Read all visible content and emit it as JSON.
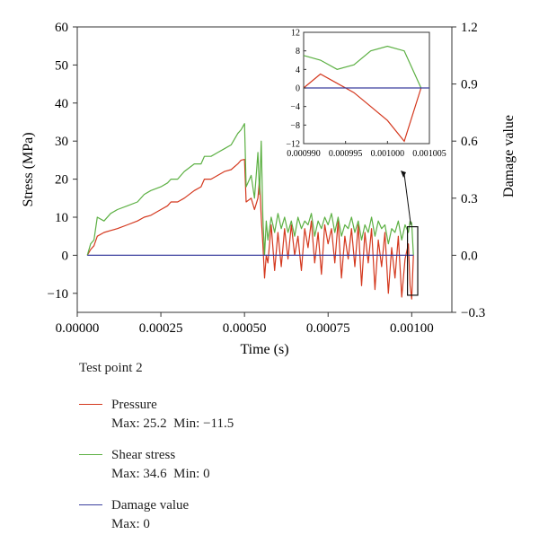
{
  "chart_data": {
    "type": "line",
    "title": "",
    "xlabel": "Time (s)",
    "ylabel": "Stress (MPa)",
    "y2label": "Damage value",
    "xlim": [
      0,
      0.00112
    ],
    "ylim": [
      -15,
      60
    ],
    "y2lim": [
      -0.3,
      1.2
    ],
    "xticks": [
      "0.00000",
      "0.00025",
      "0.00050",
      "0.00075",
      "0.00100"
    ],
    "xtick_values": [
      0,
      0.00025,
      0.0005,
      0.00075,
      0.001
    ],
    "yticks": [
      "-10",
      "0",
      "10",
      "20",
      "30",
      "40",
      "50",
      "60"
    ],
    "ytick_values": [
      -10,
      0,
      10,
      20,
      30,
      40,
      50,
      60
    ],
    "y2ticks": [
      "-0.3",
      "0.0",
      "0.3",
      "0.6",
      "0.9",
      "1.2"
    ],
    "y2tick_values": [
      -0.3,
      0,
      0.3,
      0.6,
      0.9,
      1.2
    ],
    "series": [
      {
        "name": "Pressure",
        "color": "#d4381e",
        "x": [
          3e-05,
          4e-05,
          5e-05,
          6e-05,
          8e-05,
          0.0001,
          0.00012,
          0.00015,
          0.00018,
          0.0002,
          0.00022,
          0.00025,
          0.00027,
          0.00028,
          0.0003,
          0.00032,
          0.00035,
          0.00037,
          0.00038,
          0.0004,
          0.00042,
          0.00044,
          0.00046,
          0.00048,
          0.00049,
          0.0005,
          0.000505,
          0.00052,
          0.00053,
          0.00054,
          0.000545,
          0.00055,
          0.000555,
          0.00056,
          0.000565,
          0.00057,
          0.00058,
          0.00059,
          0.0006,
          0.00061,
          0.00062,
          0.00063,
          0.00064,
          0.00065,
          0.00066,
          0.00067,
          0.00068,
          0.00069,
          0.0007,
          0.00071,
          0.00072,
          0.00073,
          0.00074,
          0.00075,
          0.00076,
          0.00077,
          0.00078,
          0.00079,
          0.0008,
          0.00081,
          0.00082,
          0.00083,
          0.00084,
          0.00085,
          0.00086,
          0.00087,
          0.00088,
          0.00089,
          0.0009,
          0.00091,
          0.00092,
          0.00093,
          0.00094,
          0.00095,
          0.00096,
          0.00097,
          0.00098,
          0.00099,
          0.000995,
          0.001,
          0.001005
        ],
        "y": [
          0,
          1.5,
          2.5,
          5,
          6,
          6.5,
          7,
          8,
          9,
          10,
          10.5,
          12,
          13,
          14,
          14,
          15,
          17,
          18,
          20,
          20,
          21,
          22,
          22.5,
          24,
          25,
          25.2,
          14,
          15,
          12,
          15,
          20,
          10,
          3,
          -6,
          0,
          -2,
          8,
          -4,
          6,
          -3,
          7,
          -1,
          8,
          0,
          5,
          -4,
          7,
          2,
          9,
          -2,
          6,
          -5,
          8,
          3,
          7,
          -2,
          9,
          -6,
          5,
          -1,
          7,
          -3,
          8,
          -8,
          6,
          -2,
          7,
          -9,
          4,
          -3,
          6,
          -10,
          2,
          -6,
          5,
          -11,
          -1,
          3,
          -8,
          -11.5,
          0
        ]
      },
      {
        "name": "Shear stress",
        "color": "#5cb043",
        "x": [
          3e-05,
          4e-05,
          5e-05,
          6e-05,
          8e-05,
          0.0001,
          0.00012,
          0.00015,
          0.00018,
          0.0002,
          0.00022,
          0.00025,
          0.00027,
          0.00028,
          0.0003,
          0.00032,
          0.00035,
          0.00037,
          0.00038,
          0.0004,
          0.00042,
          0.00044,
          0.00046,
          0.00048,
          0.00049,
          0.0005,
          0.000505,
          0.00052,
          0.00053,
          0.00054,
          0.000545,
          0.00055,
          0.000555,
          0.00056,
          0.000565,
          0.00057,
          0.00058,
          0.00059,
          0.0006,
          0.00061,
          0.00062,
          0.00063,
          0.00064,
          0.00065,
          0.00066,
          0.00067,
          0.00068,
          0.00069,
          0.0007,
          0.00071,
          0.00072,
          0.00073,
          0.00074,
          0.00075,
          0.00076,
          0.00077,
          0.00078,
          0.00079,
          0.0008,
          0.00081,
          0.00082,
          0.00083,
          0.00084,
          0.00085,
          0.00086,
          0.00087,
          0.00088,
          0.00089,
          0.0009,
          0.00091,
          0.00092,
          0.00093,
          0.00094,
          0.00095,
          0.00096,
          0.00097,
          0.00098,
          0.00099,
          0.000995,
          0.001,
          0.001005
        ],
        "y": [
          0,
          3,
          4,
          10,
          9,
          11,
          12,
          13,
          14,
          16,
          17,
          18,
          19,
          20,
          20,
          22,
          24,
          24,
          26,
          26,
          27,
          28,
          29,
          32,
          33,
          34.6,
          18,
          21,
          15,
          27,
          16,
          30,
          10,
          0,
          9,
          4,
          10,
          6,
          11,
          7,
          10,
          6,
          9,
          5,
          10,
          7,
          9,
          8,
          11,
          5,
          9,
          7,
          10,
          8,
          11,
          6,
          10,
          5,
          8,
          7,
          10,
          6,
          9,
          4,
          8,
          6,
          10,
          5,
          9,
          7,
          8,
          3,
          7,
          6,
          9,
          4,
          8,
          6,
          9,
          8.5,
          0
        ]
      },
      {
        "name": "Damage value",
        "color": "#3a3f9e",
        "axis": "y2",
        "x": [
          3e-05,
          0.001005
        ],
        "y": [
          0,
          0
        ]
      }
    ],
    "inset": {
      "xlim": [
        0.00099,
        0.001005
      ],
      "ylim": [
        -12,
        12
      ],
      "xticks": [
        "0.000990",
        "0.000995",
        "0.001000",
        "0.001005"
      ],
      "xtick_values": [
        0.00099,
        0.000995,
        0.001,
        0.001005
      ],
      "yticks": [
        "12",
        "8",
        "4",
        "0",
        "−4",
        "−8",
        "−12"
      ],
      "ytick_values": [
        12,
        8,
        4,
        0,
        -4,
        -8,
        -12
      ],
      "series": [
        {
          "name": "Pressure",
          "color": "#d4381e",
          "x": [
            0.00099,
            0.000992,
            0.000994,
            0.000996,
            0.000998,
            0.001,
            0.001002,
            0.001004
          ],
          "y": [
            0,
            3,
            1,
            -1,
            -4,
            -7,
            -11.5,
            0
          ]
        },
        {
          "name": "Shear stress",
          "color": "#5cb043",
          "x": [
            0.00099,
            0.000992,
            0.000994,
            0.000996,
            0.000998,
            0.001,
            0.001002,
            0.001004
          ],
          "y": [
            7,
            6,
            4,
            5,
            8,
            9,
            8,
            0
          ]
        },
        {
          "name": "Damage value",
          "color": "#3a3f9e",
          "x": [
            0.00099,
            0.001005
          ],
          "y": [
            0,
            0
          ]
        }
      ]
    }
  },
  "legend": {
    "title": "Test point 2",
    "entries": [
      {
        "label": "Pressure",
        "stats": "Max: 25.2  Min: −11.5",
        "color": "#d4381e"
      },
      {
        "label": "Shear stress",
        "stats": "Max: 34.6  Min: 0",
        "color": "#5cb043"
      },
      {
        "label": "Damage value",
        "stats": "Max: 0",
        "color": "#3a3f9e"
      }
    ]
  }
}
